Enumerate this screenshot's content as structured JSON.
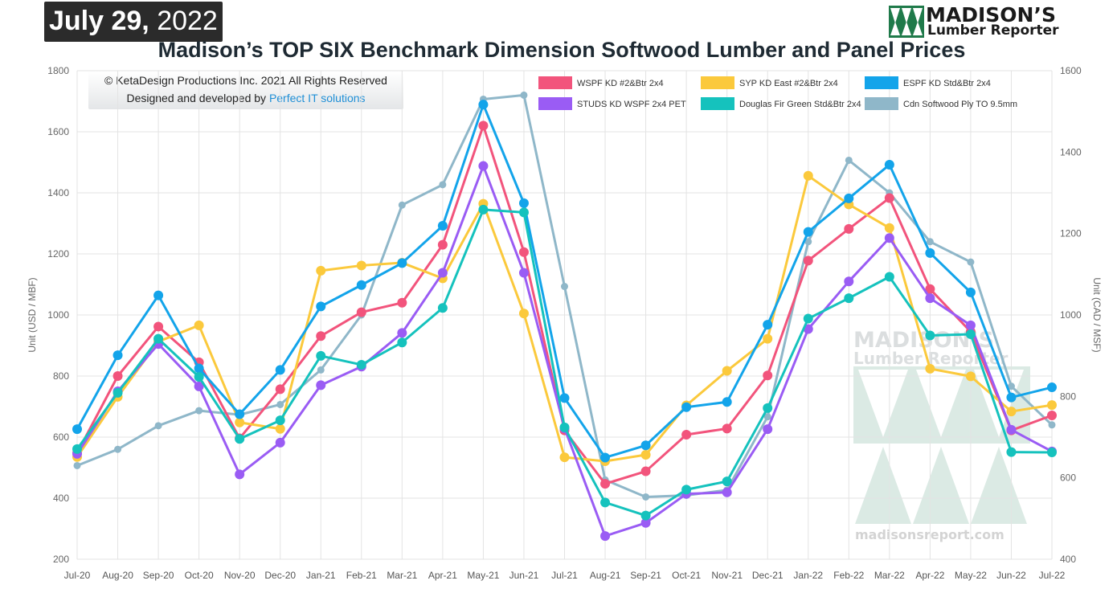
{
  "header": {
    "date_month_day": "July 29,",
    "date_year": "2022",
    "title": "Madison’s TOP SIX Benchmark Dimension Softwood Lumber and Panel Prices",
    "logo_line1": "MADISON’S",
    "logo_line2": "Lumber Reporter"
  },
  "copyright": {
    "line1": "© KetaDesign Productions Inc. 2021 All Rights Reserved",
    "line2_prefix": "Designed and developed by ",
    "line2_link": "Perfect IT solutions"
  },
  "watermark": {
    "line1": "MADISON’S",
    "line2": "Lumber Reporter",
    "url": "madisonsreport.com"
  },
  "chart_data": {
    "type": "line",
    "title": "Madison’s TOP SIX Benchmark Dimension Softwood Lumber and Panel Prices",
    "categories": [
      "Jul-20",
      "Aug-20",
      "Sep-20",
      "Oct-20",
      "Nov-20",
      "Dec-20",
      "Jan-21",
      "Feb-21",
      "Mar-21",
      "Apr-21",
      "May-21",
      "Jun-21",
      "Jul-21",
      "Aug-21",
      "Sep-21",
      "Oct-21",
      "Nov-21",
      "Dec-21",
      "Jan-22",
      "Feb-22",
      "Mar-22",
      "Apr-22",
      "May-22",
      "Jun-22",
      "Jul-22"
    ],
    "ylabel_left": "Unit (USD / MBF)",
    "ylabel_right": "Unit (CAD / MSF)",
    "ylim_left": [
      200,
      1800
    ],
    "yticks_left": [
      200,
      400,
      600,
      800,
      1000,
      1200,
      1400,
      1600,
      1800
    ],
    "ylim_right": [
      400,
      1600
    ],
    "yticks_right": [
      400,
      600,
      800,
      1000,
      1200,
      1400,
      1600
    ],
    "grid": true,
    "legend_position": "top-right",
    "series": [
      {
        "name": "WSPF KD #2&Btr 2x4",
        "color": "#f2547c",
        "axis": "left",
        "values": [
          548,
          800,
          962,
          845,
          596,
          757,
          931,
          1009,
          1040,
          1230,
          1620,
          1206,
          622,
          447,
          488,
          608,
          628,
          802,
          1178,
          1282,
          1383,
          1085,
          945,
          622,
          671
        ]
      },
      {
        "name": "SYP KD East #2&Btr 2x4",
        "color": "#fbc93c",
        "axis": "left",
        "values": [
          535,
          732,
          913,
          966,
          648,
          627,
          1145,
          1162,
          1171,
          1120,
          1364,
          1005,
          534,
          521,
          542,
          704,
          817,
          922,
          1456,
          1362,
          1285,
          824,
          799,
          684,
          705
        ]
      },
      {
        "name": "ESPF KD Std&Btr 2x4",
        "color": "#13a4ea",
        "axis": "left",
        "values": [
          626,
          868,
          1064,
          825,
          675,
          820,
          1028,
          1098,
          1170,
          1292,
          1689,
          1366,
          728,
          533,
          573,
          698,
          715,
          968,
          1272,
          1382,
          1492,
          1203,
          1074,
          730,
          763
        ]
      },
      {
        "name": "STUDS KD WSPF 2x4 PET",
        "color": "#9a5cf4",
        "axis": "left",
        "values": [
          545,
          750,
          905,
          766,
          478,
          582,
          770,
          831,
          941,
          1138,
          1488,
          1138,
          629,
          276,
          319,
          414,
          419,
          626,
          954,
          1110,
          1252,
          1055,
          966,
          624,
          553
        ]
      },
      {
        "name": "Douglas Fir Green Std&Btr 2x4",
        "color": "#15c2bd",
        "axis": "left",
        "values": [
          561,
          745,
          922,
          797,
          594,
          655,
          866,
          837,
          910,
          1023,
          1345,
          1336,
          632,
          386,
          343,
          428,
          455,
          695,
          988,
          1055,
          1125,
          933,
          937,
          551,
          550
        ]
      },
      {
        "name": "Cdn Softwood Ply TO 9.5mm",
        "color": "#8fb7c9",
        "axis": "right",
        "values": [
          630,
          670,
          728,
          765,
          755,
          780,
          865,
          1000,
          1270,
          1320,
          1530,
          1540,
          1070,
          595,
          553,
          557,
          570,
          750,
          1180,
          1380,
          1300,
          1180,
          1130,
          825,
          730
        ]
      }
    ]
  }
}
